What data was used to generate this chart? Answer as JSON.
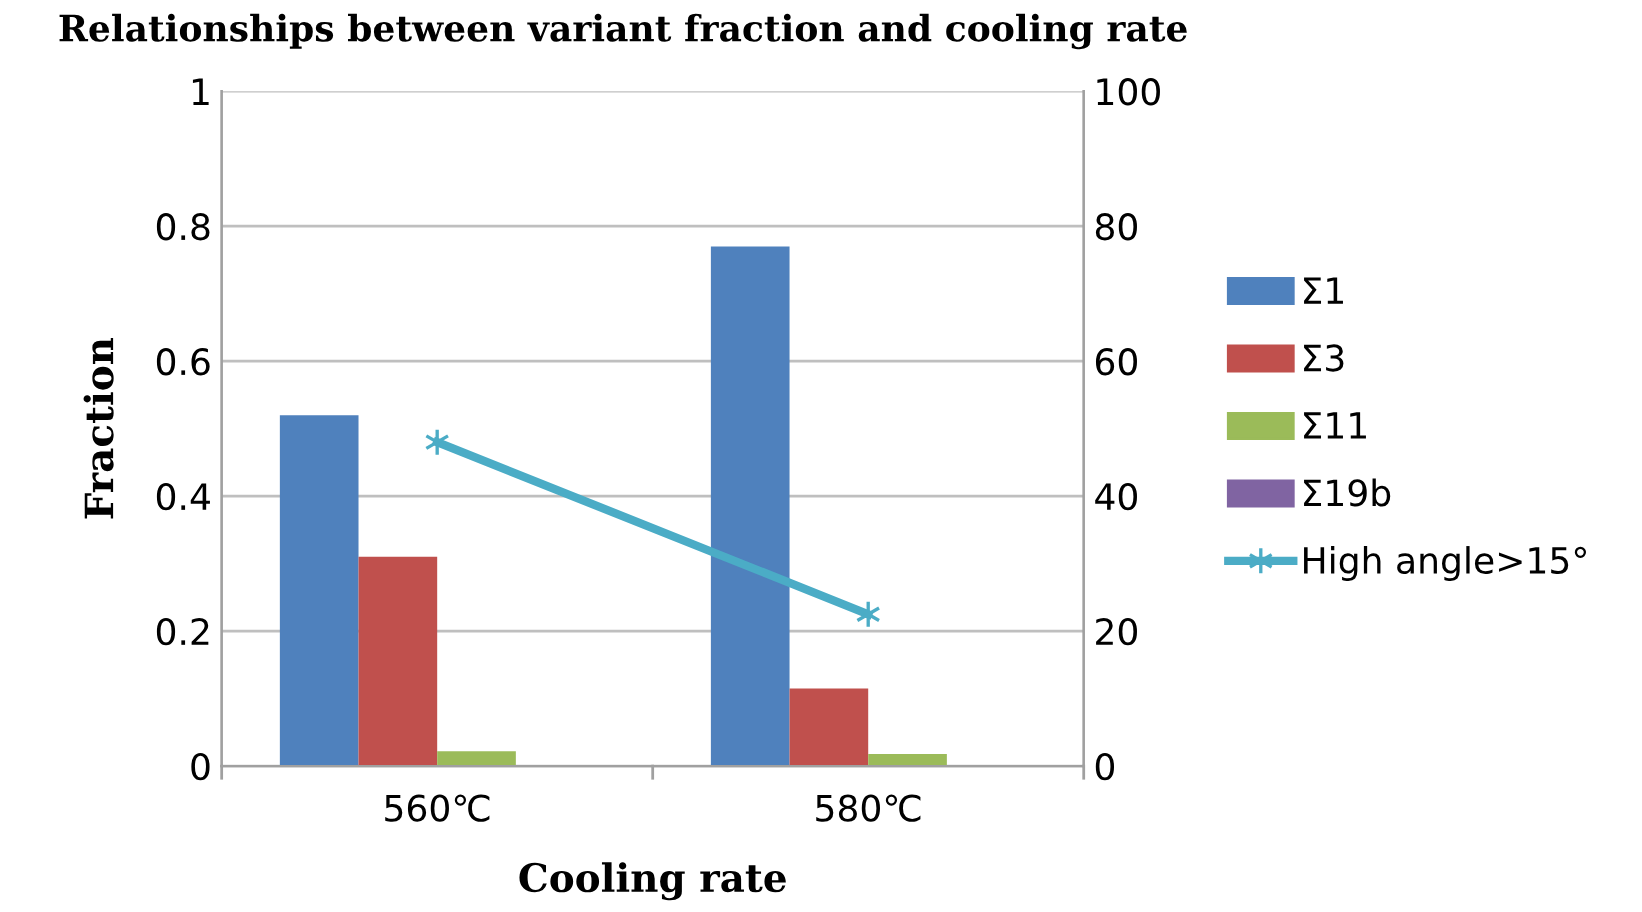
{
  "chart_data": {
    "type": "bar",
    "title": "Relationships between variant fraction and cooling rate",
    "xlabel": "Cooling rate",
    "ylabel": "Fraction",
    "categories": [
      "560℃",
      "580℃"
    ],
    "series": [
      {
        "name": "Σ1",
        "color": "#4f81bd",
        "values": [
          0.52,
          0.77
        ]
      },
      {
        "name": "Σ3",
        "color": "#c0504d",
        "values": [
          0.31,
          0.115
        ]
      },
      {
        "name": "Σ11",
        "color": "#9bbb59",
        "values": [
          0.022,
          0.018
        ]
      },
      {
        "name": "Σ19b",
        "color": "#8064a2",
        "values": [
          0,
          0
        ]
      },
      {
        "name": "High angle>15°",
        "color": "#4bacc6",
        "type": "line",
        "axis": "y2",
        "marker": "cross",
        "values": [
          48,
          22.5
        ]
      }
    ],
    "ylim": [
      0,
      1
    ],
    "yticks": [
      0,
      {
        "value": 0.2,
        "label": "0.2"
      },
      {
        "value": 0.4,
        "label": "0.4"
      },
      {
        "value": 0.6,
        "label": "0.6"
      },
      {
        "value": 0.8,
        "label": "0.8"
      },
      1
    ],
    "y2lim": [
      0,
      100
    ],
    "y2ticks": [
      0,
      20,
      40,
      60,
      80,
      100
    ],
    "grid": "y",
    "legend": "right"
  }
}
